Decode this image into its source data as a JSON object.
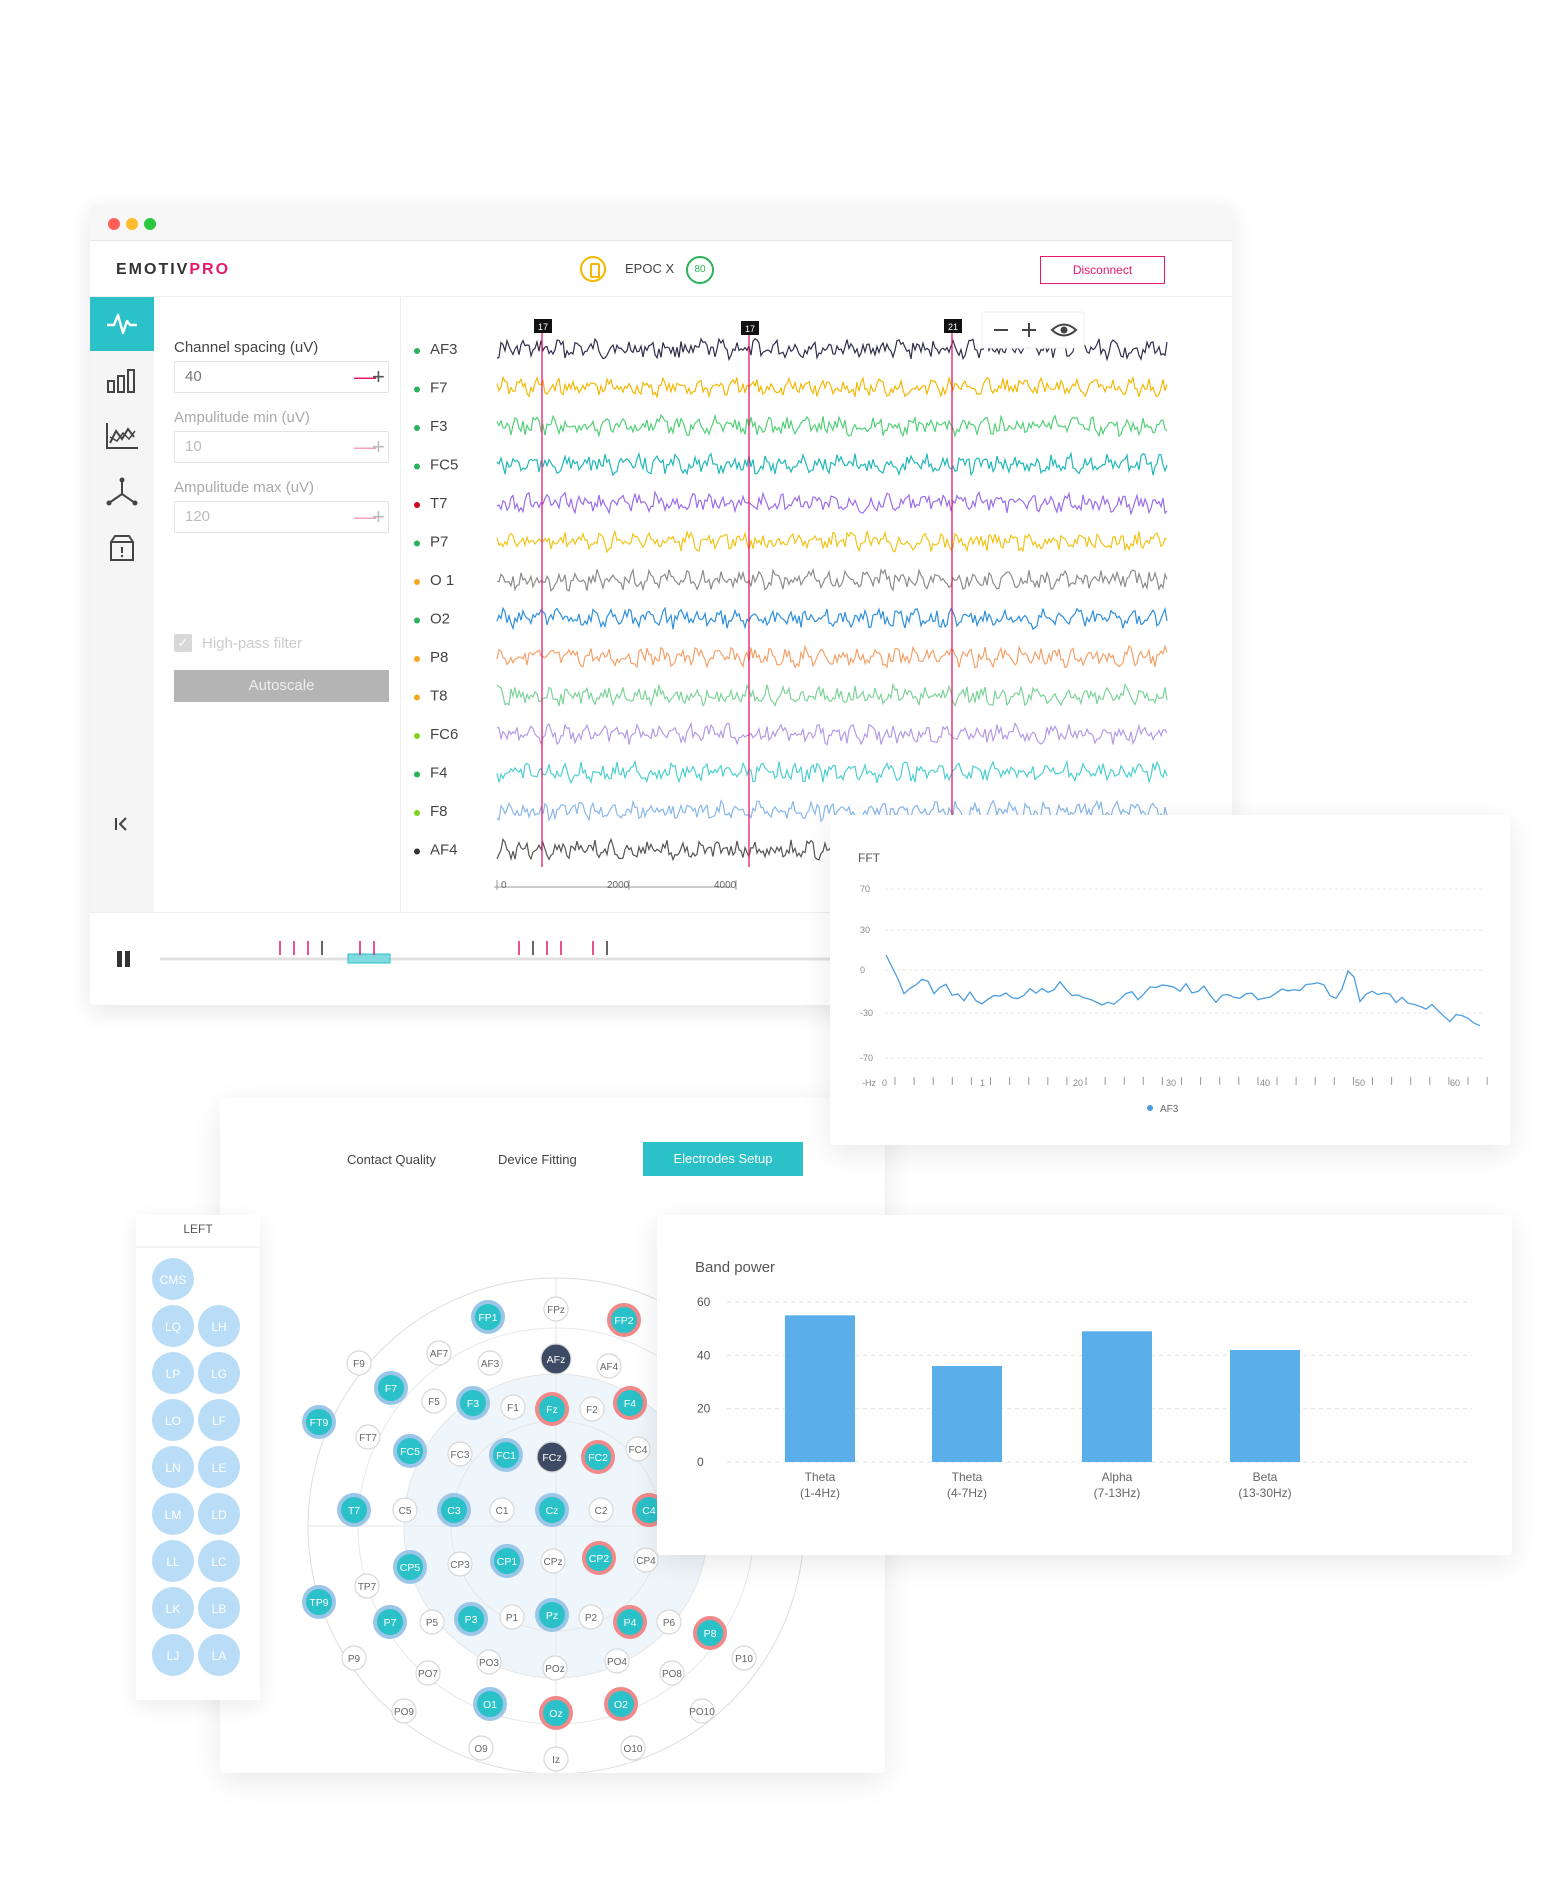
{
  "app": {
    "logo_main": "EMOTIV",
    "logo_accent": "PRO",
    "device": "EPOC X",
    "device_badge": "80",
    "disconnect_label": "Disconnect",
    "brand_color": "#e6196b",
    "accent_color": "#2bc1c8"
  },
  "settings": {
    "channel_spacing_label": "Channel spacing (uV)",
    "channel_spacing_value": "40",
    "amp_min_label": "Ampulitude min (uV)",
    "amp_min_value": "10",
    "amp_max_label": "Ampulitude max (uV)",
    "amp_max_value": "120",
    "highpass_label": "High-pass filter",
    "autoscale_label": "Autoscale"
  },
  "icons": [
    "waveform-icon",
    "bar-chart-icon",
    "line-chart-icon",
    "motion-icon",
    "archive-icon",
    "collapse-icon",
    "zoom-out-icon",
    "zoom-in-icon",
    "eye-icon",
    "pause-icon"
  ],
  "eeg": {
    "channels": [
      {
        "name": "AF3",
        "dot": "#29b35a",
        "color": "#2e2e4a"
      },
      {
        "name": "F7",
        "dot": "#29b35a",
        "color": "#f2b807"
      },
      {
        "name": "F3",
        "dot": "#29b35a",
        "color": "#55d07a"
      },
      {
        "name": "FC5",
        "dot": "#29b35a",
        "color": "#22b8b8"
      },
      {
        "name": "T7",
        "dot": "#d0021b",
        "color": "#9b6ee8"
      },
      {
        "name": "P7",
        "dot": "#29b35a",
        "color": "#f0c419"
      },
      {
        "name": "O 1",
        "dot": "#f5a623",
        "color": "#8c8c8c"
      },
      {
        "name": "O2",
        "dot": "#29b35a",
        "color": "#2f8fdc"
      },
      {
        "name": "P8",
        "dot": "#f5a623",
        "color": "#f3a26b"
      },
      {
        "name": "T8",
        "dot": "#f5a623",
        "color": "#7ed39a"
      },
      {
        "name": "FC6",
        "dot": "#7ed321",
        "color": "#b49be6"
      },
      {
        "name": "F4",
        "dot": "#29b35a",
        "color": "#4fcfcf"
      },
      {
        "name": "F8",
        "dot": "#7ed321",
        "color": "#8ab8e8"
      },
      {
        "name": "AF4",
        "dot": "#333333",
        "color": "#555555"
      }
    ],
    "markers": [
      "17",
      "17",
      "21"
    ],
    "x_ticks": [
      "0",
      "2000",
      "4000"
    ]
  },
  "fft": {
    "title": "FFT",
    "y_ticks": [
      "70",
      "30",
      "0",
      "-30",
      "-70"
    ],
    "x_unit": "-Hz",
    "x_ticks": [
      "0",
      "1",
      "20",
      "30",
      "40",
      "50",
      "60"
    ],
    "legend": "AF3",
    "color": "#4a9ee0"
  },
  "electrodes": {
    "tabs": [
      "Contact Quality",
      "Device Fitting",
      "Electrodes Setup"
    ],
    "left_title": "LEFT",
    "left_refs": [
      [
        "CMS"
      ],
      [
        "LQ",
        "LH"
      ],
      [
        "LP",
        "LG"
      ],
      [
        "LO",
        "LF"
      ],
      [
        "LN",
        "LE"
      ],
      [
        "LM",
        "LD"
      ],
      [
        "LL",
        "LC"
      ],
      [
        "LK",
        "LB"
      ],
      [
        "LJ",
        "LA"
      ]
    ],
    "labels": [
      "FPz",
      "FP1",
      "FP2",
      "AF7",
      "AF3",
      "AFz",
      "AF4",
      "F9",
      "F7",
      "F5",
      "F3",
      "F1",
      "Fz",
      "F2",
      "F4",
      "FT9",
      "FT7",
      "FC5",
      "FC3",
      "FC1",
      "FCz",
      "FC2",
      "FC4",
      "T7",
      "C5",
      "C3",
      "C1",
      "Cz",
      "C2",
      "C4",
      "CP5",
      "CP3",
      "CP1",
      "CPz",
      "CP2",
      "CP4",
      "TP9",
      "TP7",
      "P7",
      "P5",
      "P3",
      "P1",
      "Pz",
      "P2",
      "P4",
      "P6",
      "P8",
      "P9",
      "PO7",
      "PO3",
      "POz",
      "PO4",
      "PO8",
      "P10",
      "PO9",
      "O1",
      "Oz",
      "O2",
      "PO10",
      "O9",
      "Iz",
      "O10"
    ]
  },
  "chart_data": [
    {
      "type": "bar",
      "title": "Band power",
      "categories": [
        "Theta\n(1-4Hz)",
        "Theta\n(4-7Hz)",
        "Alpha\n(7-13Hz)",
        "Beta\n(13-30Hz)"
      ],
      "category_lines": [
        [
          "Theta",
          "(1-4Hz)"
        ],
        [
          "Theta",
          "(4-7Hz)"
        ],
        [
          "Alpha",
          "(7-13Hz)"
        ],
        [
          "Beta",
          "(13-30Hz)"
        ]
      ],
      "values": [
        55,
        36,
        49,
        42
      ],
      "ylim": [
        0,
        60
      ],
      "y_ticks": [
        0,
        20,
        40,
        60
      ],
      "grid": true,
      "color": "#5aaeea"
    }
  ]
}
